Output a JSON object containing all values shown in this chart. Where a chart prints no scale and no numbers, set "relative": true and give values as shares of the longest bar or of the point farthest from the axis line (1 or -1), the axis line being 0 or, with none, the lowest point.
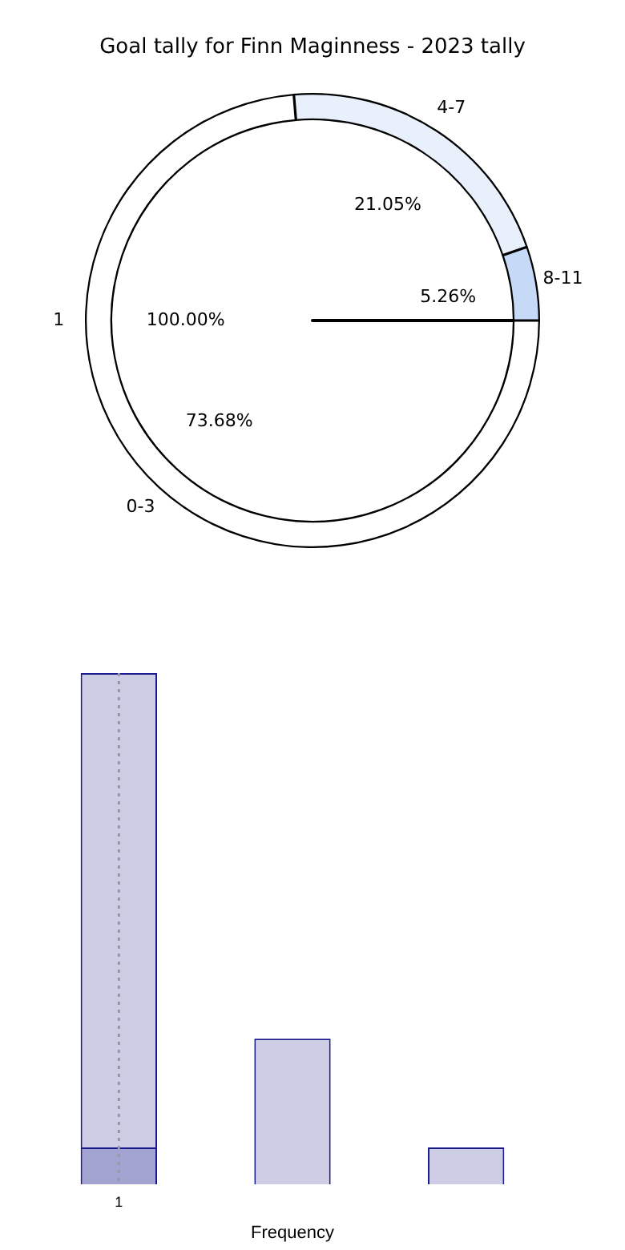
{
  "chart_data": [
    {
      "type": "donut",
      "title": "Goal tally for Finn Maginness - 2023 tally",
      "legend": false,
      "categories": [
        "0-3",
        "4-7",
        "8-11"
      ],
      "values": [
        73.68,
        21.05,
        5.26
      ],
      "value_labels": [
        "73.68%",
        "21.05%",
        "5.26%"
      ],
      "colors": [
        "#ffffff",
        "#e8f0fc",
        "#c6d9f7"
      ]
    },
    {
      "type": "pie",
      "legend": false,
      "categories": [
        "1"
      ],
      "values": [
        100
      ],
      "value_labels": [
        "100.00%"
      ],
      "colors": [
        "#ffffff"
      ]
    },
    {
      "type": "bar",
      "relative": true,
      "stacked": true,
      "xlabel": "Frequency",
      "legend": false,
      "grid": false,
      "categories": [
        "1",
        null,
        null
      ],
      "series": [
        {
          "color": "#a2a3d0",
          "values": [
            0.072,
            null,
            null
          ]
        },
        {
          "color": "#cdcee5",
          "values": [
            0.928,
            0.285,
            0.072
          ]
        }
      ],
      "ref_lines": [
        {
          "axis": "x",
          "value": "1",
          "color": "#999999",
          "line_style": "dotted"
        }
      ]
    }
  ]
}
